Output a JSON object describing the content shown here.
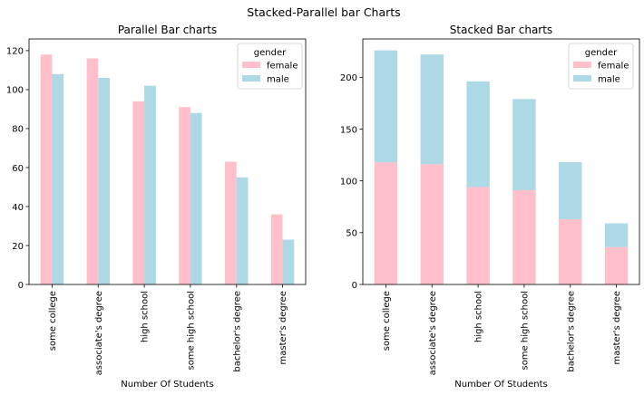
{
  "figure": {
    "suptitle": "Stacked-Parallel bar Charts"
  },
  "colors": {
    "female": "#ffc0cb",
    "male": "#add8e6",
    "axis": "#000000",
    "legend_border": "#cccccc"
  },
  "chart_data": [
    {
      "type": "bar",
      "mode": "grouped",
      "title": "Parallel Bar charts",
      "xlabel": "Number Of Students",
      "ylabel": "",
      "categories": [
        "some college",
        "associate's degree",
        "high school",
        "some high school",
        "bachelor's degree",
        "master's degree"
      ],
      "series": [
        {
          "name": "female",
          "values": [
            118,
            116,
            94,
            91,
            63,
            36
          ]
        },
        {
          "name": "male",
          "values": [
            108,
            106,
            102,
            88,
            55,
            23
          ]
        }
      ],
      "ylim": [
        0,
        126
      ],
      "yticks": [
        0,
        20,
        40,
        60,
        80,
        100,
        120
      ],
      "legend": {
        "title": "gender",
        "placement": "top-right"
      },
      "grid": false
    },
    {
      "type": "bar",
      "mode": "stacked",
      "title": "Stacked Bar charts",
      "xlabel": "Number Of Students",
      "ylabel": "",
      "categories": [
        "some college",
        "associate's degree",
        "high school",
        "some high school",
        "bachelor's degree",
        "master's degree"
      ],
      "series": [
        {
          "name": "female",
          "values": [
            118,
            116,
            94,
            91,
            63,
            36
          ]
        },
        {
          "name": "male",
          "values": [
            108,
            106,
            102,
            88,
            55,
            23
          ]
        }
      ],
      "ylim": [
        0,
        237
      ],
      "yticks": [
        0,
        50,
        100,
        150,
        200
      ],
      "legend": {
        "title": "gender",
        "placement": "top-right"
      },
      "grid": false
    }
  ]
}
